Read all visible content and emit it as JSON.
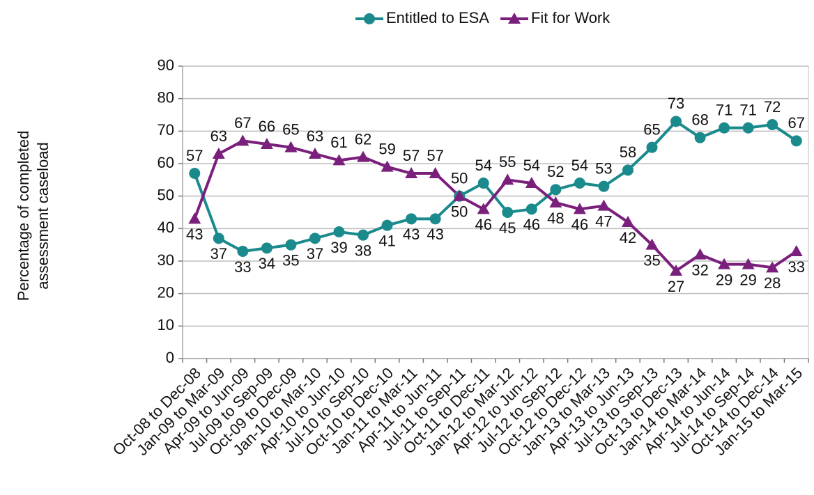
{
  "chart_data": {
    "type": "line",
    "y_label": [
      "Percentage of completed",
      "assessment caseload"
    ],
    "categories": [
      "Oct-08 to Dec-08",
      "Jan-09 to Mar-09",
      "Apr-09 to Jun-09",
      "Jul-09 to Sep-09",
      "Oct-09 to Dec-09",
      "Jan-10 to Mar-10",
      "Apr-10 to Jun-10",
      "Jul-10 to Sep-10",
      "Oct-10 to Dec-10",
      "Jan-11 to Mar-11",
      "Apr-11 to Jun-11",
      "Jul-11 to Sep-11",
      "Oct-11 to Dec-11",
      "Jan-12 to Mar-12",
      "Apr-12 to Jun-12",
      "Jul-12 to Sep-12",
      "Oct-12 to Dec-12",
      "Jan-13 to Mar-13",
      "Apr-13 to Jun-13",
      "Jul-13 to Sep-13",
      "Oct-13 to Dec-13",
      "Jan-14 to Mar-14",
      "Apr-14 to Jun-14",
      "Jul-14 to Sep-14",
      "Oct-14 to Dec-14",
      "Jan-15 to Mar-15"
    ],
    "series": [
      {
        "name": "Entitled to ESA",
        "color": "#1b8a8c",
        "marker": "circle",
        "values": [
          57,
          37,
          33,
          34,
          35,
          37,
          39,
          38,
          41,
          43,
          43,
          50,
          54,
          45,
          46,
          52,
          54,
          53,
          58,
          65,
          73,
          68,
          71,
          71,
          72,
          67
        ]
      },
      {
        "name": "Fit for Work",
        "color": "#7b1f7c",
        "marker": "triangle",
        "values": [
          43,
          63,
          67,
          66,
          65,
          63,
          61,
          62,
          59,
          57,
          57,
          50,
          46,
          55,
          54,
          48,
          46,
          47,
          42,
          35,
          27,
          32,
          29,
          29,
          28,
          33
        ]
      }
    ],
    "ylim": [
      0,
      90
    ],
    "yticks": [
      0,
      10,
      20,
      30,
      40,
      50,
      60,
      70,
      80,
      90
    ],
    "grid": true,
    "legend": "top"
  }
}
